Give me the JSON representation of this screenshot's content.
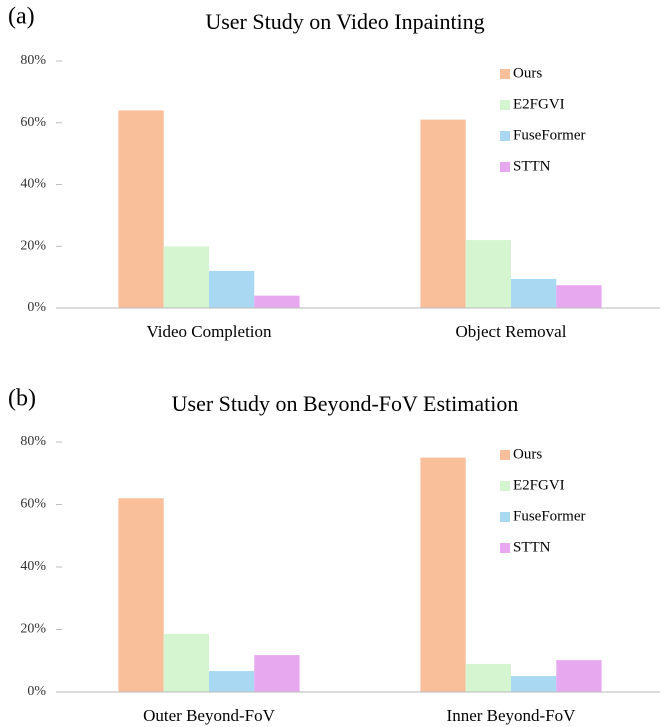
{
  "chart_data": [
    {
      "type": "bar",
      "label": "(a)",
      "title": "User Study on Video Inpainting",
      "categories": [
        "Video Completion",
        "Object Removal"
      ],
      "series": [
        {
          "name": "Ours",
          "color": "#f9bf9a",
          "values": [
            64,
            61
          ]
        },
        {
          "name": "E2FGVI",
          "color": "#d5f5d0",
          "values": [
            20,
            22
          ]
        },
        {
          "name": "FuseFormer",
          "color": "#a9d8f2",
          "values": [
            12,
            9.4
          ]
        },
        {
          "name": "STTN",
          "color": "#e8a8ef",
          "values": [
            4,
            7.4
          ]
        }
      ],
      "ylim": [
        0,
        80
      ],
      "yticks": [
        {
          "value": 0,
          "label": "0%"
        },
        {
          "value": 20,
          "label": "20%"
        },
        {
          "value": 40,
          "label": "40%"
        },
        {
          "value": 60,
          "label": "60%"
        },
        {
          "value": 80,
          "label": "80%"
        }
      ],
      "legend": "upper right"
    },
    {
      "type": "bar",
      "label": "(b)",
      "title": "User Study on Beyond-FoV Estimation",
      "categories": [
        "Outer Beyond-FoV",
        "Inner Beyond-FoV"
      ],
      "series": [
        {
          "name": "Ours",
          "color": "#f9bf9a",
          "values": [
            62,
            75
          ]
        },
        {
          "name": "E2FGVI",
          "color": "#d5f5d0",
          "values": [
            18.6,
            9
          ]
        },
        {
          "name": "FuseFormer",
          "color": "#a9d8f2",
          "values": [
            6.7,
            5.1
          ]
        },
        {
          "name": "STTN",
          "color": "#e8a8ef",
          "values": [
            11.8,
            10.2
          ]
        }
      ],
      "ylim": [
        0,
        80
      ],
      "yticks": [
        {
          "value": 0,
          "label": "0%"
        },
        {
          "value": 20,
          "label": "20%"
        },
        {
          "value": 40,
          "label": "40%"
        },
        {
          "value": 60,
          "label": "60%"
        },
        {
          "value": 80,
          "label": "80%"
        }
      ],
      "legend": "upper right"
    }
  ]
}
